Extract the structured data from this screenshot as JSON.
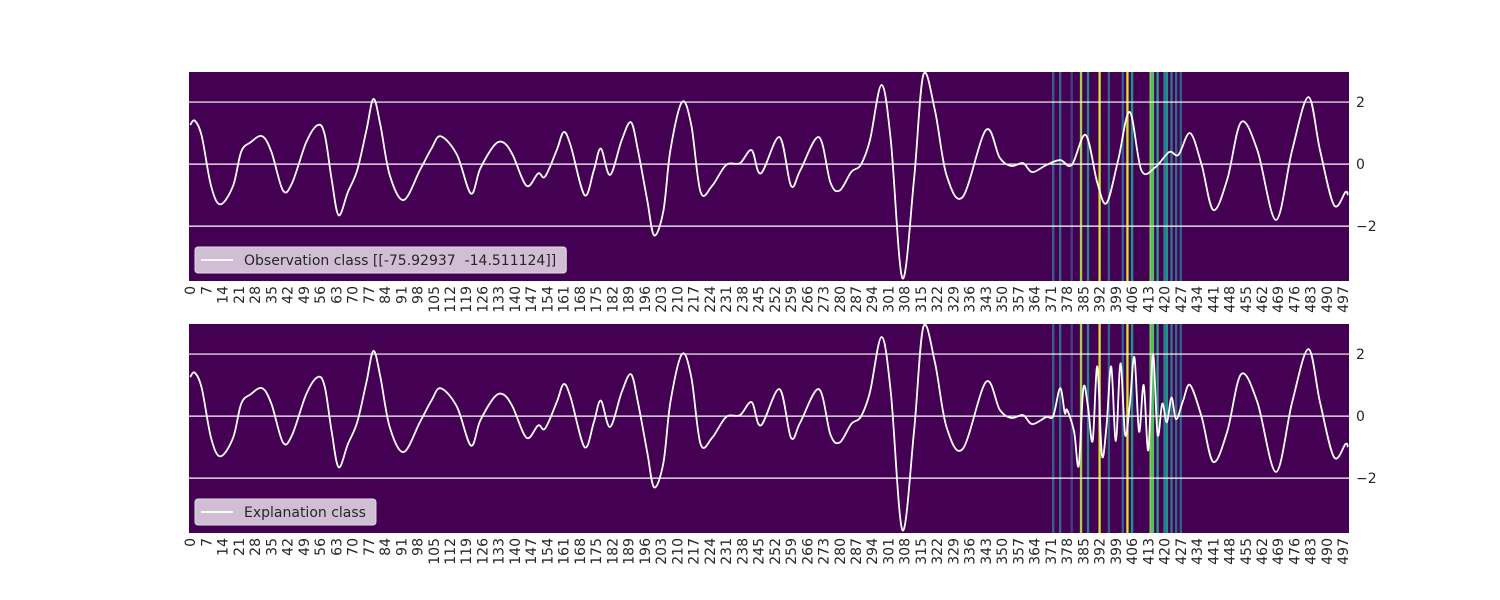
{
  "chart_data": [
    {
      "type": "line",
      "cmap": "viridis",
      "grid": true,
      "legend_loc": "lower left",
      "xlim": [
        -0.5,
        499.5
      ],
      "ylim": [
        -3.77,
        2.97
      ],
      "yticks": [
        {
          "value": -2,
          "label": "−2"
        },
        0,
        2
      ],
      "xticks": [
        0,
        7,
        14,
        21,
        28,
        35,
        42,
        49,
        56,
        63,
        70,
        77,
        84,
        91,
        98,
        105,
        112,
        119,
        126,
        133,
        140,
        147,
        154,
        161,
        168,
        175,
        182,
        189,
        196,
        203,
        210,
        217,
        224,
        231,
        238,
        245,
        252,
        259,
        266,
        273,
        280,
        287,
        294,
        301,
        308,
        315,
        322,
        329,
        336,
        343,
        350,
        357,
        364,
        371,
        378,
        385,
        392,
        399,
        406,
        413,
        420,
        427,
        434,
        441,
        448,
        455,
        462,
        469,
        476,
        483,
        490,
        497
      ],
      "heatmap": {
        "columns": [
          372,
          375,
          380,
          384,
          387,
          392,
          396,
          402,
          404,
          406,
          414,
          415,
          417,
          420,
          421,
          423,
          425,
          427
        ],
        "values": [
          0.3,
          0.35,
          0.2,
          0.85,
          0.45,
          0.95,
          0.3,
          0.3,
          0.95,
          0.5,
          0.8,
          0.7,
          0.55,
          0.45,
          0.5,
          0.4,
          0.35,
          0.3
        ]
      },
      "series": [
        {
          "name": "Observation class [[-75.92937  -14.511124]]",
          "color": "#ffffff",
          "x": [
            0,
            2,
            5,
            9,
            13,
            18.5,
            22,
            26,
            31,
            35,
            40,
            44,
            50,
            55,
            58,
            61,
            64,
            68,
            72,
            76,
            79,
            82,
            86,
            92,
            99,
            104,
            108,
            115,
            121,
            125,
            131,
            135,
            139,
            145,
            150,
            153,
            158,
            161,
            164,
            170,
            174,
            177,
            181,
            186,
            190,
            193,
            197,
            200,
            204,
            207,
            212,
            216,
            220,
            225,
            231,
            237,
            242,
            246,
            254,
            259,
            263,
            271,
            276,
            280,
            285,
            289,
            293,
            298,
            302,
            307,
            312,
            316,
            321,
            326,
            333,
            343,
            349,
            354,
            359,
            363,
            369,
            375,
            380,
            386,
            391,
            395,
            400,
            405,
            410,
            416,
            422,
            426,
            431,
            436,
            441,
            447,
            453,
            460,
            468,
            475,
            482,
            487,
            493,
            498,
            499
          ],
          "values": [
            1.26,
            1.4,
            0.9,
            -0.7,
            -1.3,
            -0.7,
            0.4,
            0.7,
            0.9,
            0.4,
            -0.85,
            -0.6,
            0.7,
            1.26,
            0.95,
            -0.5,
            -1.65,
            -0.9,
            -0.2,
            1.1,
            2.1,
            1.26,
            -0.35,
            -1.16,
            -0.2,
            0.5,
            0.9,
            0.3,
            -0.95,
            -0.15,
            0.6,
            0.7,
            0.3,
            -0.7,
            -0.3,
            -0.4,
            0.45,
            1.03,
            0.6,
            -1.0,
            -0.2,
            0.5,
            -0.35,
            0.77,
            1.35,
            0.45,
            -1.16,
            -2.3,
            -1.5,
            0.45,
            2.0,
            1.26,
            -0.9,
            -0.7,
            -0.03,
            0.03,
            0.45,
            -0.3,
            0.87,
            -0.7,
            -0.2,
            0.87,
            -0.6,
            -0.85,
            -0.25,
            -0.03,
            0.77,
            2.55,
            0.77,
            -3.68,
            -0.5,
            2.87,
            1.74,
            -0.35,
            -1.06,
            1.1,
            0.2,
            -0.06,
            0.03,
            -0.26,
            -0.03,
            0.13,
            -0.03,
            0.94,
            -0.6,
            -1.26,
            0.13,
            1.68,
            -0.2,
            -0.1,
            0.39,
            0.3,
            1.0,
            -0.03,
            -1.48,
            -0.5,
            1.35,
            0.45,
            -1.8,
            0.45,
            2.16,
            0.45,
            -1.32,
            -0.9,
            -1.0
          ]
        }
      ]
    },
    {
      "type": "line",
      "cmap": "viridis",
      "grid": true,
      "legend_loc": "lower left",
      "xlim": [
        -0.5,
        499.5
      ],
      "ylim": [
        -3.77,
        2.97
      ],
      "yticks": [
        {
          "value": -2,
          "label": "−2"
        },
        0,
        2
      ],
      "xticks": [
        0,
        7,
        14,
        21,
        28,
        35,
        42,
        49,
        56,
        63,
        70,
        77,
        84,
        91,
        98,
        105,
        112,
        119,
        126,
        133,
        140,
        147,
        154,
        161,
        168,
        175,
        182,
        189,
        196,
        203,
        210,
        217,
        224,
        231,
        238,
        245,
        252,
        259,
        266,
        273,
        280,
        287,
        294,
        301,
        308,
        315,
        322,
        329,
        336,
        343,
        350,
        357,
        364,
        371,
        378,
        385,
        392,
        399,
        406,
        413,
        420,
        427,
        434,
        441,
        448,
        455,
        462,
        469,
        476,
        483,
        490,
        497
      ],
      "heatmap": {
        "columns": [
          372,
          375,
          380,
          384,
          387,
          392,
          396,
          402,
          404,
          406,
          414,
          415,
          417,
          420,
          421,
          423,
          425,
          427
        ],
        "values": [
          0.3,
          0.35,
          0.2,
          0.85,
          0.45,
          0.95,
          0.3,
          0.3,
          0.95,
          0.5,
          0.8,
          0.7,
          0.55,
          0.45,
          0.5,
          0.4,
          0.35,
          0.3
        ]
      },
      "series": [
        {
          "name": "Explanation class",
          "color": "#ffffff",
          "x": [
            0,
            2,
            5,
            9,
            13,
            18.5,
            22,
            26,
            31,
            35,
            40,
            44,
            50,
            55,
            58,
            61,
            64,
            68,
            72,
            76,
            79,
            82,
            86,
            92,
            99,
            104,
            108,
            115,
            121,
            125,
            131,
            135,
            139,
            145,
            150,
            153,
            158,
            161,
            164,
            170,
            174,
            177,
            181,
            186,
            190,
            193,
            197,
            200,
            204,
            207,
            212,
            216,
            220,
            225,
            231,
            237,
            242,
            246,
            254,
            259,
            263,
            271,
            276,
            280,
            285,
            289,
            293,
            298,
            302,
            307,
            312,
            316,
            321,
            326,
            333,
            343,
            349,
            354,
            359,
            363,
            369,
            372,
            375,
            377,
            378,
            381,
            383,
            385,
            387,
            389,
            391,
            393,
            395,
            397,
            399,
            401,
            403,
            405,
            407,
            409,
            411,
            413,
            415,
            417,
            419,
            421,
            423,
            425,
            428,
            431,
            436,
            441,
            447,
            453,
            460,
            468,
            475,
            482,
            487,
            493,
            498,
            499
          ],
          "values": [
            1.26,
            1.4,
            0.9,
            -0.7,
            -1.3,
            -0.7,
            0.4,
            0.7,
            0.9,
            0.4,
            -0.85,
            -0.6,
            0.7,
            1.26,
            0.95,
            -0.5,
            -1.65,
            -0.9,
            -0.2,
            1.1,
            2.1,
            1.26,
            -0.35,
            -1.16,
            -0.2,
            0.5,
            0.9,
            0.3,
            -0.95,
            -0.15,
            0.6,
            0.7,
            0.3,
            -0.7,
            -0.3,
            -0.4,
            0.45,
            1.03,
            0.6,
            -1.0,
            -0.2,
            0.5,
            -0.35,
            0.77,
            1.35,
            0.45,
            -1.16,
            -2.3,
            -1.5,
            0.45,
            2.0,
            1.26,
            -0.9,
            -0.7,
            -0.03,
            0.03,
            0.45,
            -0.3,
            0.87,
            -0.7,
            -0.2,
            0.87,
            -0.6,
            -0.85,
            -0.25,
            -0.03,
            0.77,
            2.55,
            0.77,
            -3.68,
            -0.5,
            2.87,
            1.74,
            -0.35,
            -1.06,
            1.1,
            0.2,
            -0.06,
            0.03,
            -0.26,
            -0.03,
            0.0,
            0.9,
            0.1,
            0.2,
            -0.5,
            -1.6,
            0.9,
            0.3,
            -0.8,
            1.6,
            -1.26,
            -0.3,
            1.6,
            -0.8,
            1.7,
            -0.6,
            0.35,
            1.9,
            -0.5,
            1.0,
            -1.1,
            2.0,
            -0.6,
            0.4,
            -0.2,
            0.6,
            -0.1,
            0.5,
            1.0,
            -0.03,
            -1.48,
            -0.5,
            1.35,
            0.45,
            -1.8,
            0.45,
            2.16,
            0.45,
            -1.32,
            -0.9,
            -1.0
          ]
        }
      ]
    }
  ]
}
